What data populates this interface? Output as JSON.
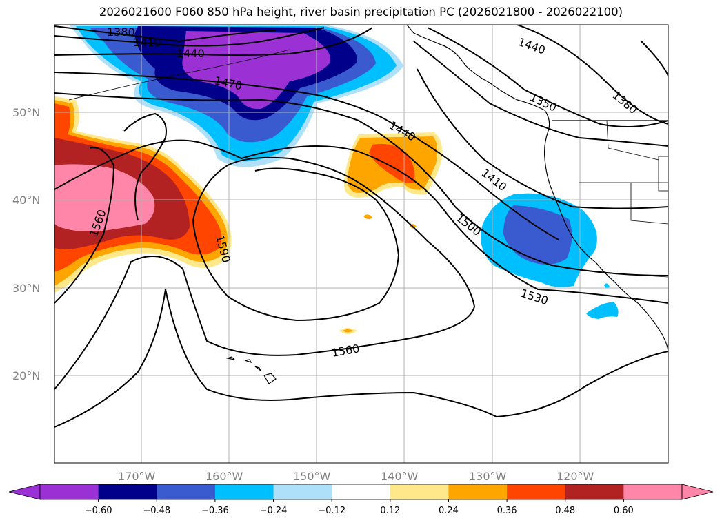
{
  "title": "2026021600 F060 850 hPa height, river basin precipitation PC (2026021800 - 2026022100)",
  "latitude_labels": [
    "50°N",
    "40°N",
    "30°N",
    "20°N"
  ],
  "longitude_labels": [
    "170°W",
    "160°W",
    "150°W",
    "140°W",
    "130°W",
    "120°W"
  ],
  "contour_labels": [
    "1380",
    "1410",
    "1440",
    "1470",
    "1440",
    "1410",
    "1500",
    "1530",
    "1560",
    "1560",
    "1590",
    "1440",
    "1350",
    "1380"
  ],
  "colorbar": {
    "ticks": [
      "−0.60",
      "−0.48",
      "−0.36",
      "−0.24",
      "−0.12",
      "0.12",
      "0.24",
      "0.36",
      "0.48",
      "0.60"
    ],
    "colors": [
      "#9b30d4",
      "#00008b",
      "#3a5bd0",
      "#00bfff",
      "#aee0fa",
      "#ffffff",
      "#ffe88a",
      "#ffa500",
      "#ff4500",
      "#b22222",
      "#ff86a8"
    ]
  },
  "chart_data": {
    "type": "map",
    "title": "2026021600 F060 850 hPa height, river basin precipitation PC (2026021800 - 2026022100)",
    "field_contours": "850 hPa geopotential height (m)",
    "contour_levels_labeled": [
      1350,
      1380,
      1410,
      1440,
      1470,
      1500,
      1530,
      1560,
      1590
    ],
    "shaded_field": "river basin precipitation PC",
    "color_levels": [
      -0.6,
      -0.48,
      -0.36,
      -0.24,
      -0.12,
      0.12,
      0.24,
      0.36,
      0.48,
      0.6
    ],
    "lat_range": [
      10,
      60
    ],
    "lon_range": [
      -180,
      -110
    ]
  }
}
